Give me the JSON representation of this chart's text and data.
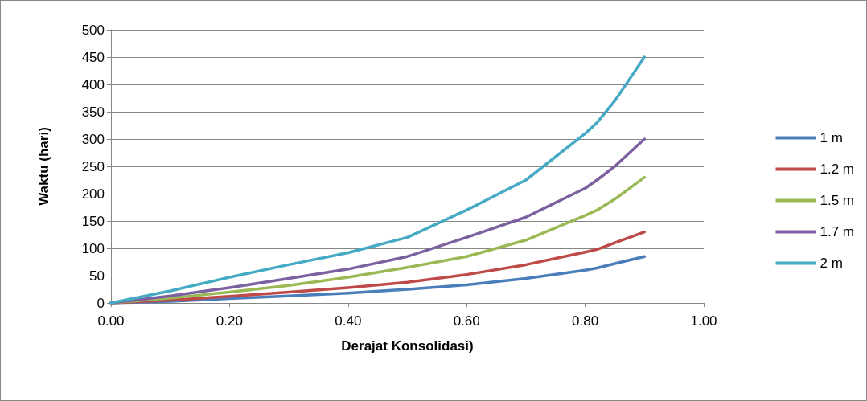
{
  "chart_data": {
    "type": "line",
    "xlabel": "Derajat Konsolidasi)",
    "ylabel": "Waktu (hari)",
    "x": [
      0,
      0.1,
      0.2,
      0.3,
      0.4,
      0.5,
      0.6,
      0.7,
      0.8,
      0.82,
      0.85,
      0.9
    ],
    "series": [
      {
        "name": "1 m",
        "color": "#4a7ebb",
        "values": [
          0,
          3,
          8,
          13,
          18,
          25,
          33,
          45,
          60,
          64,
          72,
          85
        ]
      },
      {
        "name": "1.2 m",
        "color": "#be4b48",
        "values": [
          0,
          5,
          12,
          20,
          28,
          38,
          52,
          70,
          93,
          98,
          110,
          130
        ]
      },
      {
        "name": "1.5 m",
        "color": "#98b954",
        "values": [
          0,
          9,
          20,
          32,
          47,
          65,
          85,
          115,
          160,
          170,
          190,
          230
        ]
      },
      {
        "name": "1.7 m",
        "color": "#7d60a0",
        "values": [
          0,
          13,
          28,
          45,
          62,
          85,
          120,
          157,
          210,
          225,
          250,
          300
        ]
      },
      {
        "name": "2 m",
        "color": "#46aac5",
        "values": [
          0,
          22,
          47,
          70,
          92,
          120,
          170,
          225,
          310,
          330,
          370,
          450
        ]
      }
    ],
    "xlim": [
      0,
      1
    ],
    "xticks": [
      {
        "value": 0,
        "label": "0.00"
      },
      {
        "value": 0.2,
        "label": "0.20"
      },
      {
        "value": 0.4,
        "label": "0.40"
      },
      {
        "value": 0.6,
        "label": "0.60"
      },
      {
        "value": 0.8,
        "label": "0.80"
      },
      {
        "value": 1,
        "label": "1.00"
      }
    ],
    "ylim": [
      0,
      500
    ],
    "yticks": [
      0,
      50,
      100,
      150,
      200,
      250,
      300,
      350,
      400,
      450,
      500
    ],
    "grid": "y",
    "legend": "right",
    "marker": "none",
    "line_style": "solid"
  }
}
